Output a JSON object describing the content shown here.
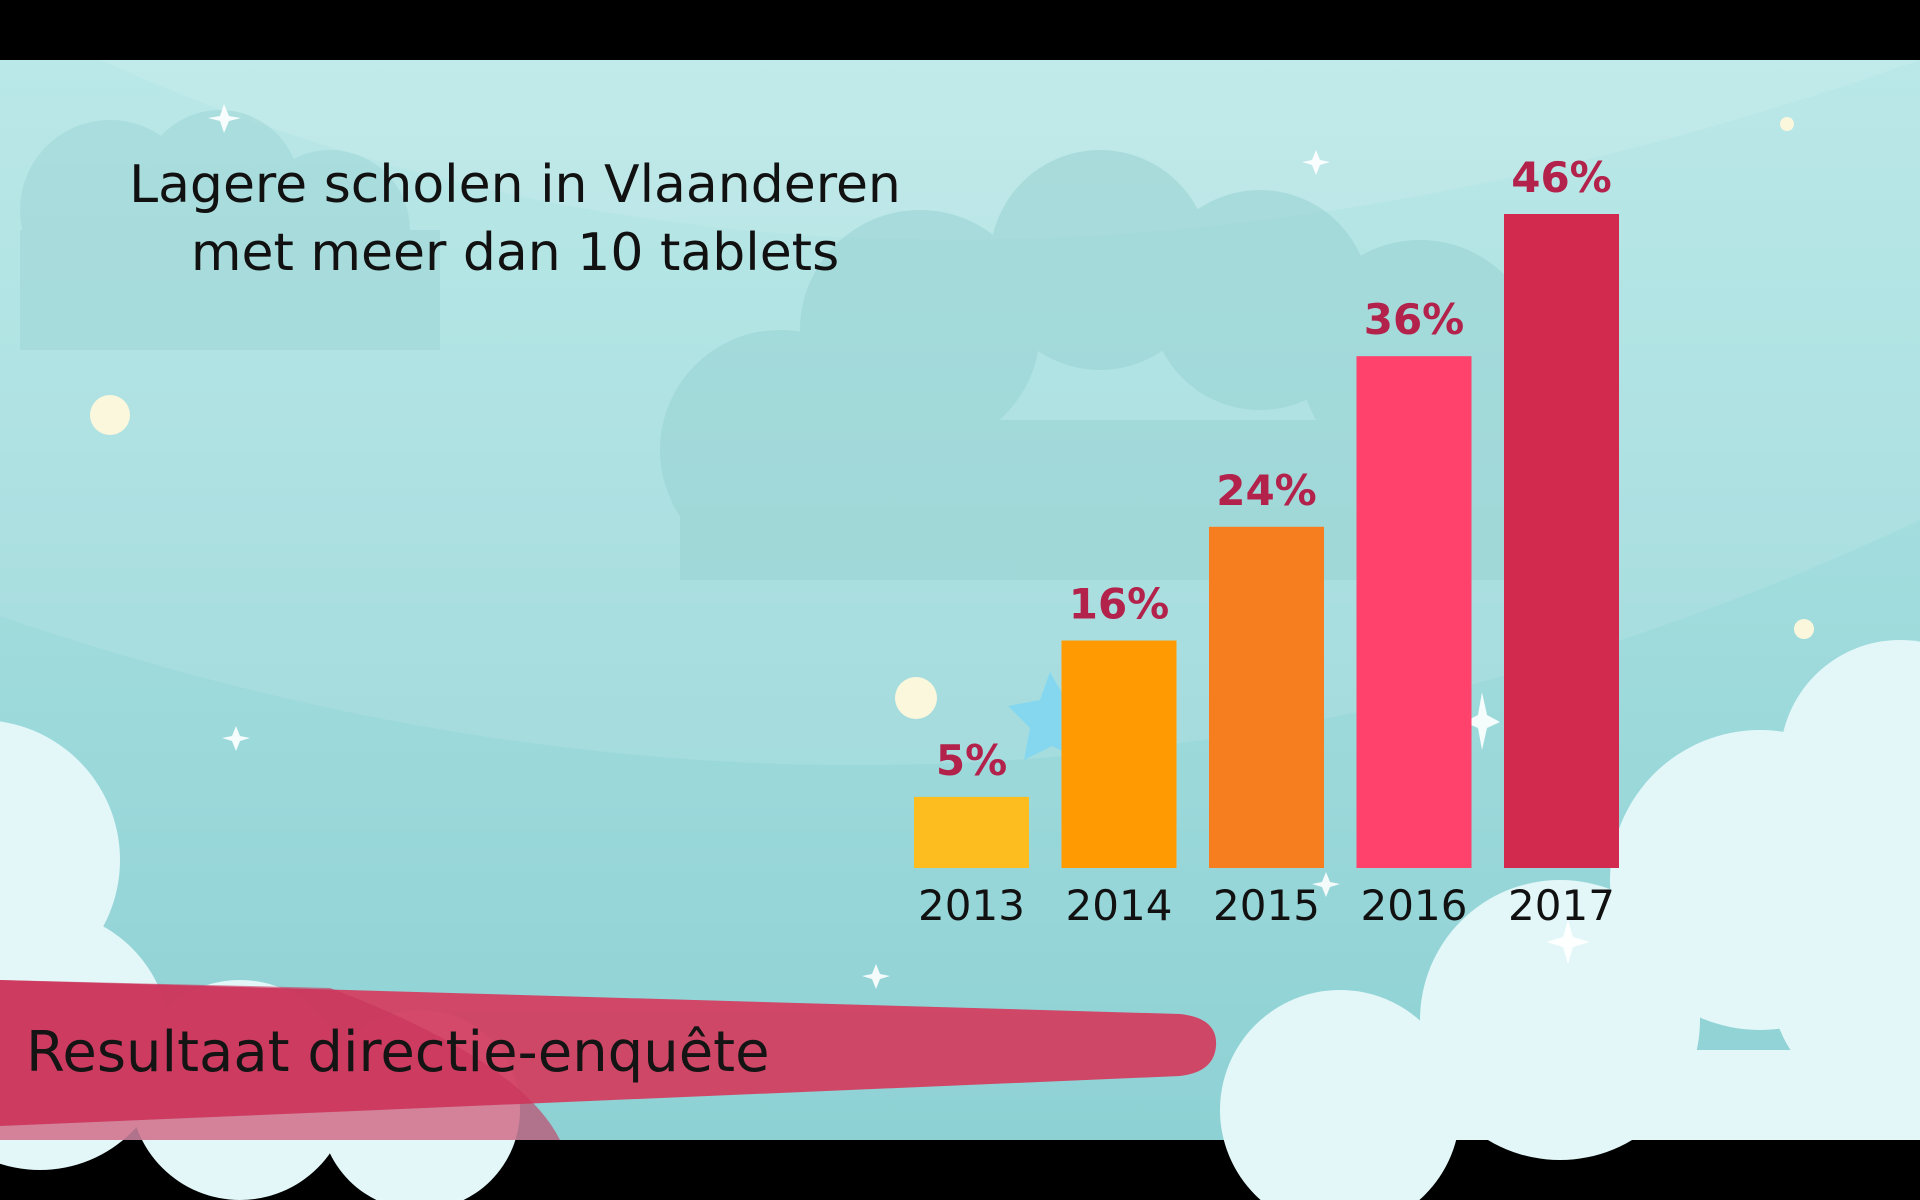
{
  "chart_data": {
    "type": "bar",
    "title_lines": [
      "Lagere scholen in Vlaanderen",
      "met meer dan 10 tablets"
    ],
    "categories": [
      "2013",
      "2014",
      "2015",
      "2016",
      "2017"
    ],
    "values": [
      5,
      16,
      24,
      36,
      46
    ],
    "value_labels": [
      "5%",
      "16%",
      "24%",
      "36%",
      "46%"
    ],
    "colors": [
      "#fdbd1f",
      "#ff9a03",
      "#f77e1e",
      "#fe426b",
      "#d2294f"
    ],
    "xlabel": "",
    "ylabel": "",
    "ylim": [
      0,
      46
    ],
    "grid": false,
    "legend": "none"
  },
  "banner": {
    "text": "Resultaat directie-enquête",
    "color": "#d33f61"
  },
  "background": {
    "sky_color": "#a9e0df",
    "cloud_color": "#e5f8fa",
    "letterbox_color": "#000000"
  }
}
